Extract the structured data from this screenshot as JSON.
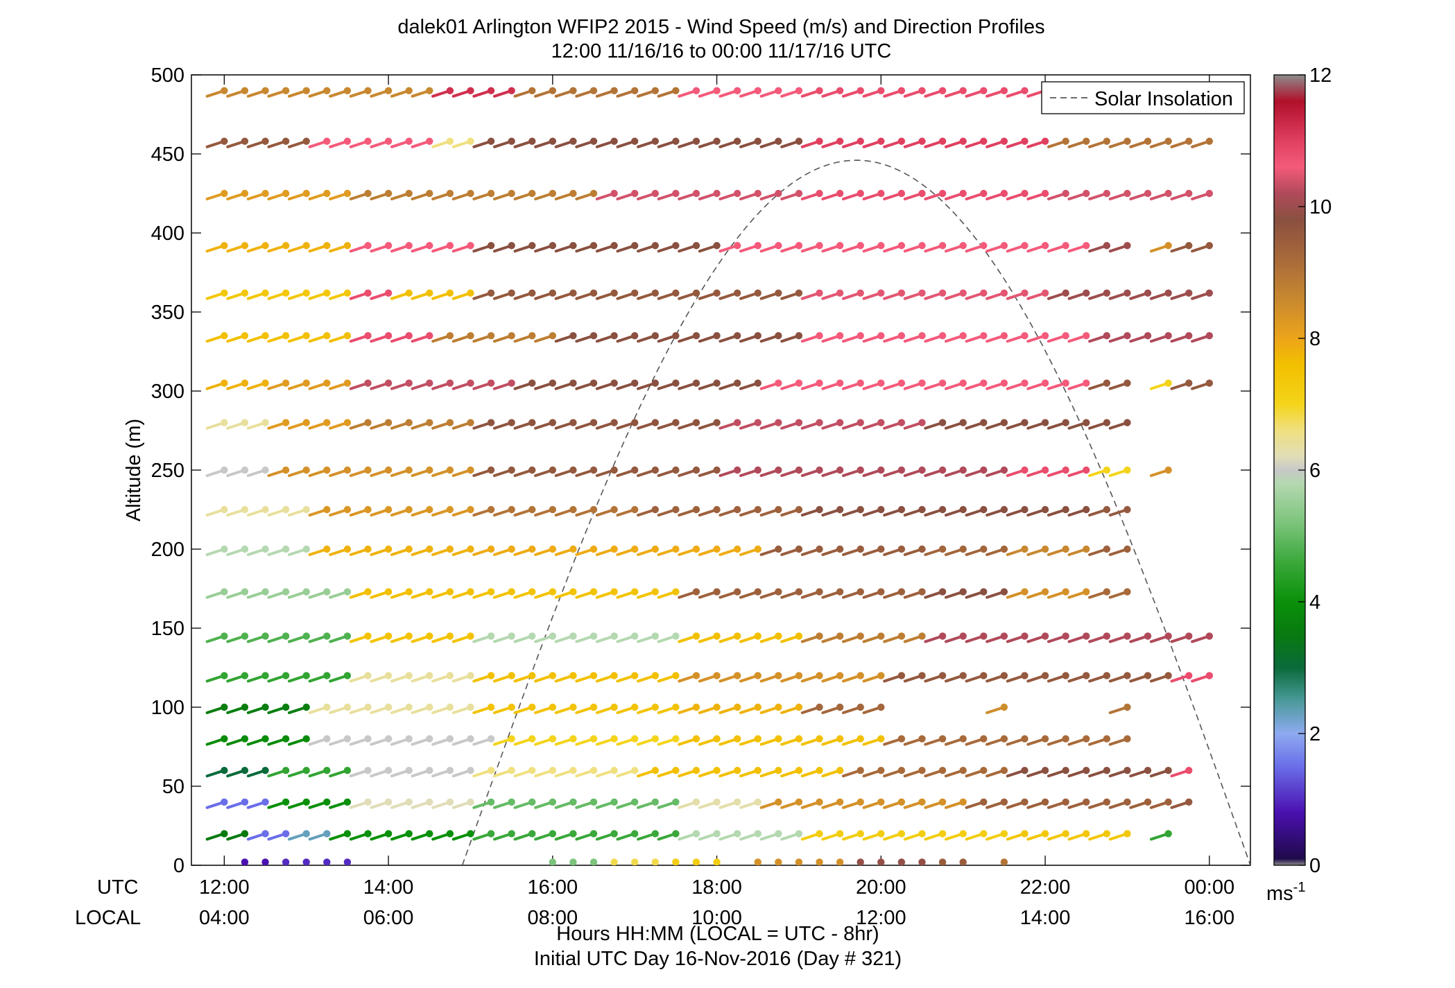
{
  "chart_data": {
    "type": "wind_barb_profile",
    "title": "dalek01 Arlington WFIP2 2015 - Wind Speed (m/s) and Direction Profiles",
    "subtitle": "12:00 11/16/16 to 00:00 11/17/16  UTC",
    "ylabel": "Altitude (m)",
    "xlabel": "Hours HH:MM  (LOCAL = UTC - 8hr)",
    "xlabel2": "Initial UTC Day 16-Nov-2016 (Day # 321)",
    "row_label_utc": "UTC",
    "row_label_local": "LOCAL",
    "ylim": [
      0,
      500
    ],
    "xlim_hours": [
      11.6,
      24.5
    ],
    "yticks": [
      "0",
      "50",
      "100",
      "150",
      "200",
      "250",
      "300",
      "350",
      "400",
      "450",
      "500"
    ],
    "xticks_utc": [
      "12:00",
      "14:00",
      "16:00",
      "18:00",
      "20:00",
      "22:00",
      "00:00"
    ],
    "xticks_local": [
      "04:00",
      "06:00",
      "08:00",
      "10:00",
      "12:00",
      "14:00",
      "16:00"
    ],
    "colorbar": {
      "ticks": [
        "0",
        "2",
        "4",
        "6",
        "8",
        "10",
        "12"
      ],
      "unit": "ms",
      "unit_exp": "-1",
      "range": [
        0,
        12
      ]
    },
    "legend": {
      "entries": [
        "Solar Insolation"
      ],
      "placement": "top-right"
    },
    "solar_insolation": {
      "style": "dashed",
      "color": "#555555",
      "start_hour": 14.9,
      "peak_hour": 19.7,
      "peak_altitude": 446,
      "end_hour": 24.5,
      "end_altitude": 28
    },
    "altitudes": [
      2,
      20,
      40,
      60,
      80,
      100,
      120,
      145,
      173,
      200,
      225,
      250,
      280,
      305,
      335,
      362,
      392,
      425,
      458,
      490
    ],
    "time_step_min": 15,
    "speed_profile_by_altitude": [
      {
        "alt": 2,
        "phases": [
          [
            12.25,
            12.5,
            0.8
          ],
          [
            12.75,
            13.5,
            1.0
          ],
          [
            15.9,
            16.6,
            5.2
          ],
          [
            16.7,
            17.3,
            6.8
          ],
          [
            17.4,
            18.2,
            7.2
          ],
          [
            18.3,
            19.6,
            8.4
          ],
          [
            19.7,
            20.5,
            9.9
          ],
          [
            20.6,
            21.2,
            9.5
          ],
          [
            21.4,
            21.7,
            9.0
          ]
        ]
      },
      {
        "alt": 20,
        "phases": [
          [
            12.0,
            12.25,
            3.5
          ],
          [
            12.5,
            12.75,
            1.5
          ],
          [
            13.0,
            13.25,
            2.3
          ],
          [
            13.5,
            15.0,
            4.0
          ],
          [
            15.25,
            17.5,
            4.6
          ],
          [
            17.75,
            19.0,
            5.8
          ],
          [
            19.25,
            21.5,
            7.2
          ],
          [
            21.75,
            23.0,
            7.4
          ],
          [
            23.5,
            23.5,
            4.5
          ]
        ]
      },
      {
        "alt": 40,
        "phases": [
          [
            12.0,
            12.5,
            1.5
          ],
          [
            12.75,
            13.5,
            4.0
          ],
          [
            13.75,
            15.0,
            6.2
          ],
          [
            15.25,
            17.5,
            5.0
          ],
          [
            17.75,
            18.5,
            6.3
          ],
          [
            18.75,
            21.0,
            8.4
          ],
          [
            21.25,
            23.5,
            9.4
          ],
          [
            23.75,
            23.75,
            9.6
          ]
        ]
      },
      {
        "alt": 60,
        "phases": [
          [
            12.0,
            12.5,
            3.0
          ],
          [
            12.75,
            13.5,
            4.5
          ],
          [
            13.75,
            15.0,
            6.0
          ],
          [
            15.25,
            17.0,
            6.6
          ],
          [
            17.25,
            19.5,
            7.6
          ],
          [
            19.75,
            21.5,
            9.2
          ],
          [
            21.75,
            23.5,
            9.8
          ],
          [
            23.75,
            23.75,
            10.8
          ]
        ]
      },
      {
        "alt": 80,
        "phases": [
          [
            12.0,
            13.0,
            3.9
          ],
          [
            13.25,
            14.5,
            6.0
          ],
          [
            14.75,
            15.25,
            6.0
          ],
          [
            15.5,
            17.5,
            7.0
          ],
          [
            17.75,
            20.0,
            7.6
          ],
          [
            20.25,
            23.0,
            9.2
          ]
        ]
      },
      {
        "alt": 100,
        "phases": [
          [
            12.0,
            13.0,
            3.6
          ],
          [
            13.25,
            15.0,
            6.4
          ],
          [
            15.25,
            17.5,
            7.5
          ],
          [
            17.75,
            19.0,
            7.8
          ],
          [
            19.25,
            20.0,
            9.3
          ],
          [
            21.5,
            21.5,
            8.5
          ],
          [
            23.0,
            23.0,
            9.0
          ]
        ]
      },
      {
        "alt": 120,
        "phases": [
          [
            12.0,
            13.5,
            4.5
          ],
          [
            13.75,
            15.0,
            6.4
          ],
          [
            15.25,
            17.5,
            7.6
          ],
          [
            17.75,
            20.0,
            8.4
          ],
          [
            20.25,
            23.5,
            9.6
          ],
          [
            23.75,
            24.0,
            10.8
          ]
        ]
      },
      {
        "alt": 145,
        "phases": [
          [
            12.0,
            13.5,
            4.8
          ],
          [
            13.75,
            15.0,
            7.5
          ],
          [
            15.25,
            17.5,
            5.8
          ],
          [
            17.75,
            19.0,
            7.6
          ],
          [
            19.25,
            20.5,
            8.8
          ],
          [
            20.75,
            24.0,
            10.2
          ]
        ]
      },
      {
        "alt": 173,
        "phases": [
          [
            12.0,
            13.5,
            5.5
          ],
          [
            13.75,
            15.0,
            7.6
          ],
          [
            15.25,
            17.5,
            7.5
          ],
          [
            17.75,
            20.5,
            9.4
          ],
          [
            20.75,
            21.5,
            9.8
          ],
          [
            21.75,
            22.5,
            8.4
          ],
          [
            22.75,
            23.0,
            9.2
          ]
        ]
      },
      {
        "alt": 200,
        "phases": [
          [
            12.0,
            13.0,
            5.8
          ],
          [
            13.25,
            15.0,
            7.8
          ],
          [
            15.25,
            18.5,
            7.9
          ],
          [
            18.75,
            20.5,
            9.5
          ],
          [
            20.75,
            21.5,
            9.3
          ],
          [
            21.75,
            22.5,
            8.6
          ],
          [
            22.75,
            23.0,
            9.4
          ]
        ]
      },
      {
        "alt": 225,
        "phases": [
          [
            12.0,
            13.0,
            6.4
          ],
          [
            13.25,
            15.0,
            8.3
          ],
          [
            15.25,
            17.0,
            9.0
          ],
          [
            17.25,
            19.0,
            9.4
          ],
          [
            19.25,
            22.5,
            9.8
          ],
          [
            22.75,
            23.0,
            9.6
          ]
        ]
      },
      {
        "alt": 250,
        "phases": [
          [
            12.0,
            12.5,
            6.0
          ],
          [
            12.75,
            15.0,
            8.4
          ],
          [
            15.25,
            18.0,
            9.6
          ],
          [
            18.25,
            21.5,
            10.2
          ],
          [
            21.75,
            22.5,
            10.8
          ],
          [
            22.75,
            23.0,
            7.0
          ],
          [
            23.5,
            23.5,
            8.4
          ]
        ]
      },
      {
        "alt": 280,
        "phases": [
          [
            12.0,
            12.5,
            6.4
          ],
          [
            12.75,
            13.5,
            8.2
          ],
          [
            13.75,
            15.0,
            8.8
          ],
          [
            15.25,
            18.0,
            9.7
          ],
          [
            18.25,
            20.5,
            10.3
          ],
          [
            20.75,
            23.0,
            9.8
          ]
        ]
      },
      {
        "alt": 305,
        "phases": [
          [
            12.0,
            12.5,
            7.8
          ],
          [
            12.75,
            13.5,
            8.2
          ],
          [
            13.75,
            15.5,
            10.3
          ],
          [
            15.75,
            18.5,
            9.8
          ],
          [
            18.75,
            22.5,
            10.6
          ],
          [
            22.75,
            23.0,
            9.6
          ],
          [
            23.5,
            23.5,
            7.0
          ],
          [
            23.75,
            24.0,
            9.6
          ]
        ]
      },
      {
        "alt": 335,
        "phases": [
          [
            12.0,
            13.5,
            7.6
          ],
          [
            13.75,
            14.5,
            10.8
          ],
          [
            14.75,
            16.0,
            8.8
          ],
          [
            16.25,
            19.0,
            9.8
          ],
          [
            19.25,
            22.5,
            10.6
          ],
          [
            22.75,
            24.0,
            10.2
          ]
        ]
      },
      {
        "alt": 362,
        "phases": [
          [
            12.0,
            13.5,
            7.4
          ],
          [
            13.75,
            14.0,
            10.8
          ],
          [
            14.25,
            15.0,
            7.6
          ],
          [
            15.25,
            19.0,
            9.6
          ],
          [
            19.25,
            22.0,
            10.5
          ],
          [
            22.25,
            24.0,
            10.0
          ]
        ]
      },
      {
        "alt": 392,
        "phases": [
          [
            12.0,
            13.5,
            7.8
          ],
          [
            13.75,
            15.0,
            10.6
          ],
          [
            15.25,
            18.0,
            9.8
          ],
          [
            18.25,
            22.5,
            10.6
          ],
          [
            22.75,
            23.0,
            10.0
          ],
          [
            23.5,
            23.5,
            8.4
          ],
          [
            23.75,
            24.0,
            9.6
          ]
        ]
      },
      {
        "alt": 425,
        "phases": [
          [
            12.0,
            13.5,
            8.2
          ],
          [
            13.75,
            16.5,
            8.8
          ],
          [
            16.75,
            19.0,
            10.4
          ],
          [
            19.25,
            22.0,
            10.8
          ],
          [
            22.25,
            24.0,
            10.4
          ]
        ]
      },
      {
        "alt": 458,
        "phases": [
          [
            12.0,
            13.0,
            9.6
          ],
          [
            13.25,
            14.5,
            10.6
          ],
          [
            14.75,
            15.0,
            6.6
          ],
          [
            15.25,
            19.0,
            9.8
          ],
          [
            19.25,
            22.0,
            11.0
          ],
          [
            22.25,
            24.0,
            9.0
          ]
        ]
      },
      {
        "alt": 490,
        "phases": [
          [
            12.0,
            14.5,
            8.6
          ],
          [
            14.75,
            15.5,
            11.2
          ],
          [
            15.75,
            17.5,
            9.0
          ],
          [
            17.75,
            19.0,
            10.6
          ],
          [
            19.25,
            22.0,
            10.8
          ],
          [
            22.25,
            23.0,
            9.6
          ]
        ]
      }
    ]
  },
  "colors": {
    "axis": "#000000",
    "insolation": "#555555",
    "colormap_stops": [
      [
        0.0,
        "#8c8c8c"
      ],
      [
        0.03,
        "#1a0a40"
      ],
      [
        0.8,
        "#4a10b0"
      ],
      [
        1.5,
        "#6a6ee8"
      ],
      [
        2.0,
        "#8eaaf0"
      ],
      [
        2.5,
        "#4a9a9a"
      ],
      [
        3.0,
        "#0a6a3a"
      ],
      [
        3.5,
        "#087a10"
      ],
      [
        4.0,
        "#0a900a"
      ],
      [
        4.6,
        "#3aa83a"
      ],
      [
        5.2,
        "#7cc47c"
      ],
      [
        5.8,
        "#b4d8b0"
      ],
      [
        6.0,
        "#c8c8c8"
      ],
      [
        6.2,
        "#e0ddb8"
      ],
      [
        6.6,
        "#f0e080"
      ],
      [
        7.0,
        "#f4d41a"
      ],
      [
        7.6,
        "#f2c000"
      ],
      [
        8.0,
        "#eca41a"
      ],
      [
        8.6,
        "#c88830"
      ],
      [
        9.2,
        "#a86a3a"
      ],
      [
        9.8,
        "#8a5040"
      ],
      [
        10.2,
        "#b04a5a"
      ],
      [
        10.6,
        "#f45a7a"
      ],
      [
        11.0,
        "#e04060"
      ],
      [
        11.6,
        "#b0102a"
      ],
      [
        12.0,
        "#8c8c8c"
      ]
    ]
  }
}
